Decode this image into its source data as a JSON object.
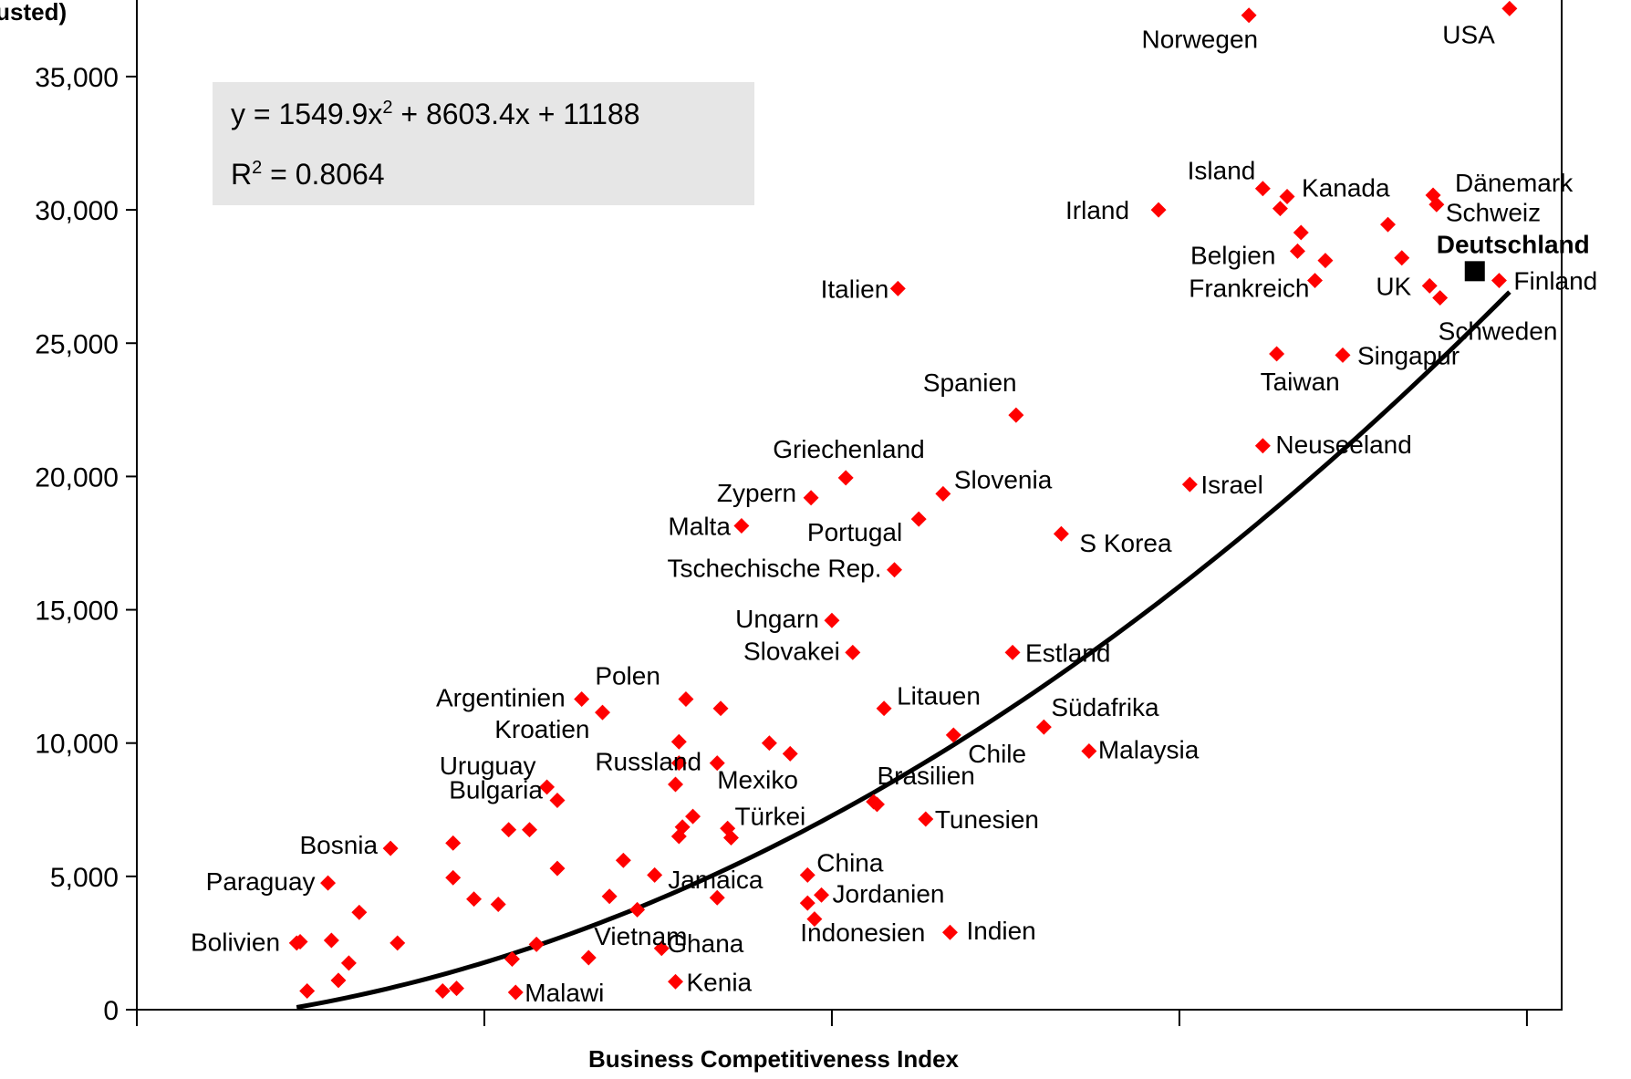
{
  "chart_data": {
    "type": "scatter",
    "title": "",
    "xlabel": "Business Competitiveness Index",
    "ylabel": "djusted)",
    "xlim": [
      -2.5,
      1.6
    ],
    "ylim": [
      0,
      37500
    ],
    "x_ticks": [
      -2.5,
      -1.5,
      -0.5,
      0.5,
      1.5
    ],
    "y_ticks": [
      0,
      5000,
      10000,
      15000,
      20000,
      25000,
      30000,
      35000
    ],
    "y_tick_labels": [
      "0",
      "5,000",
      "10,000",
      "15,000",
      "20,000",
      "25,000",
      "30,000",
      "35,000"
    ],
    "grid": false,
    "trendline": {
      "equation_text": "y = 1549.9x",
      "equation_sup": "2",
      "equation_rest": " + 8603.4x + 11188",
      "r2_prefix": "R",
      "r2_sup": "2",
      "r2_rest": " = 0.8064",
      "coefficients": {
        "a": 1549.9,
        "b": 8603.4,
        "c": 11188
      },
      "x_range": [
        -2.04,
        1.45
      ]
    },
    "highlight": {
      "name": "Deutschland",
      "x": 1.35,
      "y": 27700
    },
    "points": [
      {
        "x": -2.04,
        "y": 2500,
        "label": ""
      },
      {
        "x": -2.03,
        "y": 2550,
        "label": "Bolivien"
      },
      {
        "x": -2.01,
        "y": 700,
        "label": ""
      },
      {
        "x": -1.95,
        "y": 4750,
        "label": "Paraguay"
      },
      {
        "x": -1.94,
        "y": 2600,
        "label": ""
      },
      {
        "x": -1.92,
        "y": 1100,
        "label": ""
      },
      {
        "x": -1.89,
        "y": 1750,
        "label": ""
      },
      {
        "x": -1.86,
        "y": 3650,
        "label": ""
      },
      {
        "x": -1.77,
        "y": 6050,
        "label": "Bosnia"
      },
      {
        "x": -1.75,
        "y": 2500,
        "label": ""
      },
      {
        "x": -1.62,
        "y": 700,
        "label": ""
      },
      {
        "x": -1.59,
        "y": 6250,
        "label": ""
      },
      {
        "x": -1.59,
        "y": 4950,
        "label": ""
      },
      {
        "x": -1.58,
        "y": 800,
        "label": ""
      },
      {
        "x": -1.53,
        "y": 4150,
        "label": ""
      },
      {
        "x": -1.46,
        "y": 3950,
        "label": ""
      },
      {
        "x": -1.43,
        "y": 6750,
        "label": ""
      },
      {
        "x": -1.42,
        "y": 1900,
        "label": ""
      },
      {
        "x": -1.41,
        "y": 650,
        "label": "Malawi"
      },
      {
        "x": -1.37,
        "y": 6750,
        "label": ""
      },
      {
        "x": -1.35,
        "y": 2450,
        "label": ""
      },
      {
        "x": -1.32,
        "y": 8350,
        "label": "Uruguay"
      },
      {
        "x": -1.29,
        "y": 7850,
        "label": "Bulgaria"
      },
      {
        "x": -1.29,
        "y": 5300,
        "label": ""
      },
      {
        "x": -1.22,
        "y": 11650,
        "label": "Argentinien"
      },
      {
        "x": -1.2,
        "y": 1950,
        "label": "Vietnam"
      },
      {
        "x": -1.16,
        "y": 11150,
        "label": "Kroatien"
      },
      {
        "x": -1.14,
        "y": 4250,
        "label": ""
      },
      {
        "x": -1.1,
        "y": 5600,
        "label": ""
      },
      {
        "x": -1.06,
        "y": 3750,
        "label": ""
      },
      {
        "x": -1.01,
        "y": 5050,
        "label": ""
      },
      {
        "x": -0.99,
        "y": 2300,
        "label": "Ghana"
      },
      {
        "x": -0.95,
        "y": 1050,
        "label": "Kenia"
      },
      {
        "x": -0.95,
        "y": 8450,
        "label": ""
      },
      {
        "x": -0.94,
        "y": 10050,
        "label": ""
      },
      {
        "x": -0.94,
        "y": 9250,
        "label": "Russland"
      },
      {
        "x": -0.94,
        "y": 6500,
        "label": ""
      },
      {
        "x": -0.93,
        "y": 6850,
        "label": ""
      },
      {
        "x": -0.92,
        "y": 11650,
        "label": "Polen"
      },
      {
        "x": -0.9,
        "y": 7250,
        "label": ""
      },
      {
        "x": -0.83,
        "y": 4200,
        "label": "Jamaica"
      },
      {
        "x": -0.83,
        "y": 9250,
        "label": ""
      },
      {
        "x": -0.82,
        "y": 11300,
        "label": ""
      },
      {
        "x": -0.8,
        "y": 6800,
        "label": ""
      },
      {
        "x": -0.79,
        "y": 6450,
        "label": "Türkei"
      },
      {
        "x": -0.76,
        "y": 18150,
        "label": "Malta"
      },
      {
        "x": -0.68,
        "y": 10000,
        "label": ""
      },
      {
        "x": -0.62,
        "y": 9600,
        "label": "Mexiko"
      },
      {
        "x": -0.57,
        "y": 5050,
        "label": "China"
      },
      {
        "x": -0.57,
        "y": 4000,
        "label": "Indonesien"
      },
      {
        "x": -0.56,
        "y": 19200,
        "label": "Zypern"
      },
      {
        "x": -0.55,
        "y": 3400,
        "label": ""
      },
      {
        "x": -0.53,
        "y": 4300,
        "label": "Jordanien"
      },
      {
        "x": -0.5,
        "y": 14600,
        "label": "Ungarn"
      },
      {
        "x": -0.46,
        "y": 19950,
        "label": "Griechenland"
      },
      {
        "x": -0.44,
        "y": 13400,
        "label": "Slovakei"
      },
      {
        "x": -0.38,
        "y": 7800,
        "label": ""
      },
      {
        "x": -0.37,
        "y": 7700,
        "label": "Brasilien"
      },
      {
        "x": -0.35,
        "y": 11300,
        "label": "Litauen"
      },
      {
        "x": -0.32,
        "y": 16500,
        "label": "Tschechische Rep."
      },
      {
        "x": -0.31,
        "y": 27050,
        "label": "Italien"
      },
      {
        "x": -0.25,
        "y": 18400,
        "label": "Portugal"
      },
      {
        "x": -0.23,
        "y": 7150,
        "label": "Tunesien"
      },
      {
        "x": -0.18,
        "y": 19350,
        "label": "Slovenia"
      },
      {
        "x": -0.16,
        "y": 2900,
        "label": "Indien"
      },
      {
        "x": -0.15,
        "y": 10300,
        "label": "Chile"
      },
      {
        "x": 0.02,
        "y": 13400,
        "label": "Estland"
      },
      {
        "x": 0.03,
        "y": 22300,
        "label": "Spanien"
      },
      {
        "x": 0.11,
        "y": 10600,
        "label": "Südafrika"
      },
      {
        "x": 0.16,
        "y": 17850,
        "label": "S Korea"
      },
      {
        "x": 0.24,
        "y": 9700,
        "label": "Malaysia"
      },
      {
        "x": 0.44,
        "y": 30000,
        "label": "Irland"
      },
      {
        "x": 0.53,
        "y": 19700,
        "label": "Israel"
      },
      {
        "x": 0.7,
        "y": 37300,
        "label": "Norwegen"
      },
      {
        "x": 0.74,
        "y": 21150,
        "label": "Neuseeland"
      },
      {
        "x": 0.74,
        "y": 30800,
        "label": "Island"
      },
      {
        "x": 0.78,
        "y": 24600,
        "label": "Taiwan"
      },
      {
        "x": 0.79,
        "y": 30050,
        "label": ""
      },
      {
        "x": 0.81,
        "y": 30500,
        "label": "Kanada"
      },
      {
        "x": 0.84,
        "y": 28450,
        "label": "Belgien"
      },
      {
        "x": 0.85,
        "y": 29150,
        "label": ""
      },
      {
        "x": 0.89,
        "y": 27350,
        "label": "Frankreich"
      },
      {
        "x": 0.92,
        "y": 28100,
        "label": ""
      },
      {
        "x": 0.97,
        "y": 24550,
        "label": "Singapur"
      },
      {
        "x": 1.1,
        "y": 29450,
        "label": ""
      },
      {
        "x": 1.14,
        "y": 28200,
        "label": ""
      },
      {
        "x": 1.23,
        "y": 30550,
        "label": "Dänemark"
      },
      {
        "x": 1.24,
        "y": 30200,
        "label": "Schweiz"
      },
      {
        "x": 1.22,
        "y": 27150,
        "label": "UK"
      },
      {
        "x": 1.25,
        "y": 26700,
        "label": "Schweden"
      },
      {
        "x": 1.42,
        "y": 27350,
        "label": "Finland"
      },
      {
        "x": 1.45,
        "y": 37550,
        "label": "USA"
      }
    ]
  }
}
